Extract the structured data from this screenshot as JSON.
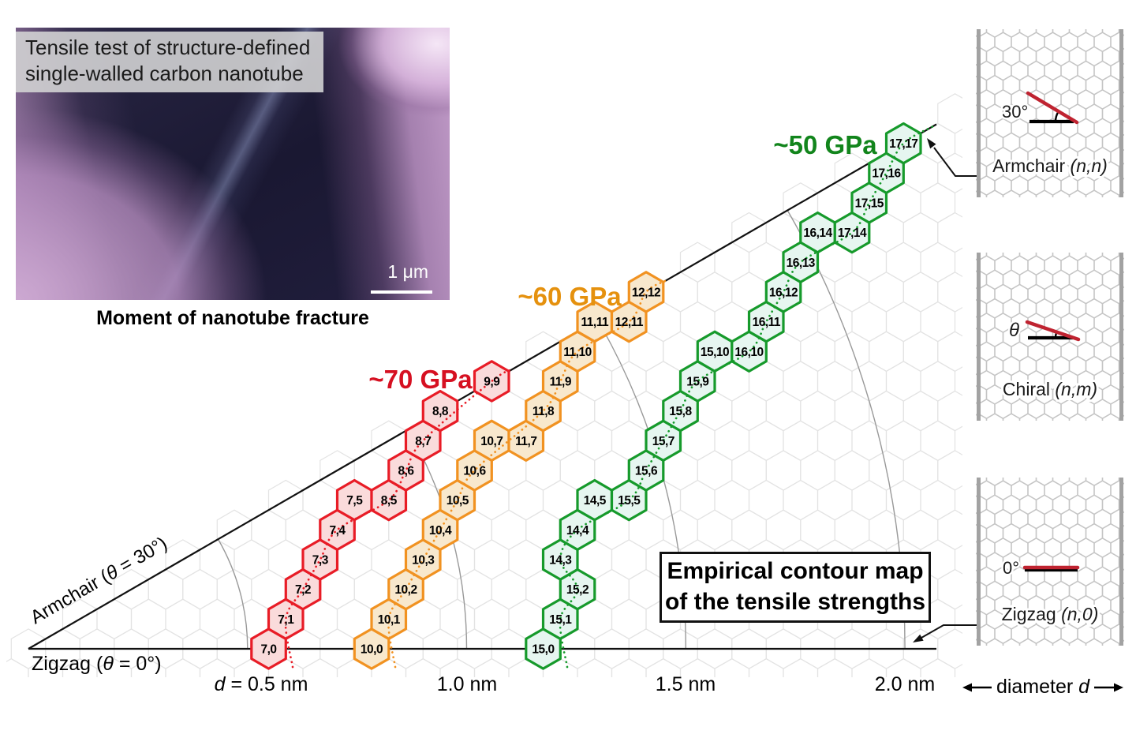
{
  "sem_panel": {
    "overlay_line1": "Tensile test of structure-defined",
    "overlay_line2": "single-walled carbon nanotube",
    "scale_bar_label": "1 μm",
    "caption": "Moment of nanotube fracture"
  },
  "title_box": {
    "line1": "Empirical contour map",
    "line2": "of the tensile strengths"
  },
  "chart_data": {
    "type": "hexagonal_chirality_contour_map",
    "title": "Empirical contour map of the tensile strengths",
    "series": [
      {
        "name": "~70 GPa",
        "strength_gpa": 70,
        "stroke": "#e81c26",
        "fill": "#fadbdb",
        "chirality": [
          [
            7,
            0
          ],
          [
            7,
            1
          ],
          [
            7,
            2
          ],
          [
            7,
            3
          ],
          [
            7,
            4
          ],
          [
            7,
            5
          ],
          [
            8,
            5
          ],
          [
            8,
            6
          ],
          [
            8,
            7
          ],
          [
            8,
            8
          ],
          [
            9,
            9
          ]
        ]
      },
      {
        "name": "~60 GPa",
        "strength_gpa": 60,
        "stroke": "#f19221",
        "fill": "#f8e8cd",
        "chirality": [
          [
            10,
            0
          ],
          [
            10,
            1
          ],
          [
            10,
            2
          ],
          [
            10,
            3
          ],
          [
            10,
            4
          ],
          [
            10,
            5
          ],
          [
            10,
            6
          ],
          [
            10,
            7
          ],
          [
            11,
            7
          ],
          [
            11,
            8
          ],
          [
            11,
            9
          ],
          [
            11,
            10
          ],
          [
            11,
            11
          ],
          [
            12,
            11
          ],
          [
            12,
            12
          ]
        ]
      },
      {
        "name": "~50 GPa",
        "strength_gpa": 50,
        "stroke": "#169a2b",
        "fill": "#e6f6f0",
        "chirality": [
          [
            15,
            0
          ],
          [
            15,
            1
          ],
          [
            15,
            2
          ],
          [
            14,
            3
          ],
          [
            14,
            4
          ],
          [
            14,
            5
          ],
          [
            15,
            5
          ],
          [
            15,
            6
          ],
          [
            15,
            7
          ],
          [
            15,
            8
          ],
          [
            15,
            9
          ],
          [
            15,
            10
          ],
          [
            16,
            10
          ],
          [
            16,
            11
          ],
          [
            16,
            12
          ],
          [
            16,
            13
          ],
          [
            16,
            14
          ],
          [
            17,
            14
          ],
          [
            17,
            15
          ],
          [
            17,
            16
          ],
          [
            17,
            17
          ]
        ]
      }
    ],
    "axes": {
      "armchair": {
        "before": "Armchair (",
        "italic": "θ",
        "after": " = 30°)"
      },
      "zigzag": {
        "before": "Zigzag (",
        "italic": "θ",
        "after": " = 0°)"
      },
      "diameter_ticks": [
        {
          "d": 0.5,
          "italic": "d",
          "label": " = 0.5 nm"
        },
        {
          "d": 1.0,
          "italic": "",
          "label": "1.0 nm"
        },
        {
          "d": 1.5,
          "italic": "",
          "label": "1.5 nm"
        },
        {
          "d": 2.0,
          "italic": "",
          "label": "2.0 nm"
        }
      ]
    }
  },
  "sidebar": {
    "tubes": [
      {
        "id": "armchair",
        "angle_label": "30°",
        "name": "Armchair ",
        "formula": "(n,n)"
      },
      {
        "id": "chiral",
        "angle_label": "θ",
        "name": "Chiral ",
        "formula": "(n,m)"
      },
      {
        "id": "zigzag",
        "angle_label": "0°",
        "name": "Zigzag ",
        "formula": "(n,0)"
      }
    ],
    "diameter_label": {
      "text": "diameter ",
      "italic": "d"
    }
  }
}
